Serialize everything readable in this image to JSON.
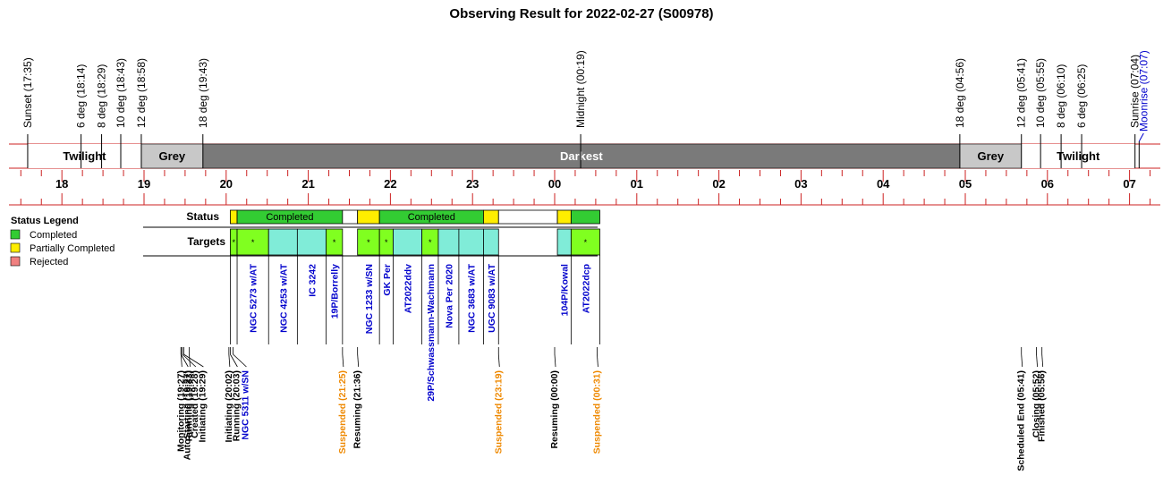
{
  "colors": {
    "grid_red": "#cc2222",
    "twilight": "#ffffff",
    "grey": "#c8c8c8",
    "darkest": "#7a7a7a",
    "completed": "#33cc33",
    "partial": "#ffee00",
    "rejected": "#f08080",
    "target_green": "#80ff20",
    "target_cyan": "#80ecd8",
    "label_blue": "#0000cc",
    "suspended_orange": "#ee8800",
    "event_black": "#000000"
  },
  "chart_data": {
    "type": "timeline",
    "title": "Observing Result for 2022-02-27 (S00978)",
    "x_axis": {
      "unit": "hour",
      "range": [
        "17:08",
        "07:22"
      ],
      "tick_labels": [
        "18",
        "19",
        "20",
        "21",
        "22",
        "23",
        "00",
        "01",
        "02",
        "03",
        "04",
        "05",
        "06",
        "07"
      ]
    },
    "sky_markers": [
      {
        "label": "Sunset (17:35)",
        "time": "17:35",
        "color": "black"
      },
      {
        "label": "6 deg (18:14)",
        "time": "18:14",
        "color": "black"
      },
      {
        "label": "8 deg (18:29)",
        "time": "18:29",
        "color": "black"
      },
      {
        "label": "10 deg (18:43)",
        "time": "18:43",
        "color": "black"
      },
      {
        "label": "12 deg (18:58)",
        "time": "18:58",
        "color": "black"
      },
      {
        "label": "18 deg (19:43)",
        "time": "19:43",
        "color": "black"
      },
      {
        "label": "Midnight (00:19)",
        "time": "00:19",
        "color": "black"
      },
      {
        "label": "18 deg (04:56)",
        "time": "04:56",
        "color": "black"
      },
      {
        "label": "12 deg (05:41)",
        "time": "05:41",
        "color": "black"
      },
      {
        "label": "10 deg (05:55)",
        "time": "05:55",
        "color": "black"
      },
      {
        "label": "8 deg (06:10)",
        "time": "06:10",
        "color": "black"
      },
      {
        "label": "6 deg (06:25)",
        "time": "06:25",
        "color": "black"
      },
      {
        "label": "Sunrise (07:04)",
        "time": "07:04",
        "color": "black"
      },
      {
        "label": "Moonrise (07:07)",
        "time": "07:07",
        "color": "blue"
      }
    ],
    "sky_bands": [
      {
        "label": "Twilight",
        "start": "17:35",
        "end": "18:58",
        "kind": "twilight"
      },
      {
        "label": "Grey",
        "start": "18:58",
        "end": "19:43",
        "kind": "grey"
      },
      {
        "label": "Darkest",
        "start": "19:43",
        "end": "04:56",
        "kind": "darkest"
      },
      {
        "label": "Grey",
        "start": "04:56",
        "end": "05:41",
        "kind": "grey"
      },
      {
        "label": "Twilight",
        "start": "05:41",
        "end": "07:04",
        "kind": "twilight"
      }
    ],
    "row_labels": {
      "status": "Status",
      "targets": "Targets"
    },
    "status_segments": [
      {
        "start": "20:03",
        "end": "20:08",
        "status": "partial",
        "label": ""
      },
      {
        "start": "20:08",
        "end": "21:25",
        "status": "completed",
        "label": "Completed"
      },
      {
        "start": "21:25",
        "end": "21:36",
        "status": "none",
        "label": ""
      },
      {
        "start": "21:36",
        "end": "21:52",
        "status": "partial",
        "label": ""
      },
      {
        "start": "21:52",
        "end": "23:08",
        "status": "completed",
        "label": "Completed"
      },
      {
        "start": "23:08",
        "end": "23:19",
        "status": "partial",
        "label": ""
      },
      {
        "start": "23:19",
        "end": "00:02",
        "status": "none",
        "label": ""
      },
      {
        "start": "00:02",
        "end": "00:12",
        "status": "partial",
        "label": ""
      },
      {
        "start": "00:12",
        "end": "00:33",
        "status": "completed",
        "label": ""
      }
    ],
    "targets": [
      {
        "name": "",
        "start": "20:03",
        "end": "20:08",
        "fill": "green",
        "star": true
      },
      {
        "name": "NGC 5273 w/AT",
        "start": "20:08",
        "end": "20:31",
        "fill": "green",
        "star": true
      },
      {
        "name": "NGC 4253 w/AT",
        "start": "20:31",
        "end": "20:52",
        "fill": "cyan",
        "star": false
      },
      {
        "name": "IC 3242",
        "start": "20:52",
        "end": "21:13",
        "fill": "cyan",
        "star": false
      },
      {
        "name": "19P/Borrelly",
        "start": "21:13",
        "end": "21:25",
        "fill": "green",
        "star": true
      },
      {
        "name": "NGC 1233 w/SN",
        "start": "21:36",
        "end": "21:52",
        "fill": "green",
        "star": true
      },
      {
        "name": "GK Per",
        "start": "21:52",
        "end": "22:02",
        "fill": "green",
        "star": true
      },
      {
        "name": "AT2022ddv",
        "start": "22:02",
        "end": "22:23",
        "fill": "cyan",
        "star": false
      },
      {
        "name": "29P/Schwassmann-Wachmann",
        "start": "22:23",
        "end": "22:35",
        "fill": "green",
        "star": true
      },
      {
        "name": "Nova Per 2020",
        "start": "22:35",
        "end": "22:50",
        "fill": "cyan",
        "star": false
      },
      {
        "name": "NGC 3683 w/AT",
        "start": "22:50",
        "end": "23:08",
        "fill": "cyan",
        "star": false
      },
      {
        "name": "UGC 9083 w/AT",
        "start": "23:08",
        "end": "23:19",
        "fill": "cyan",
        "star": false
      },
      {
        "name": "104P/Kowal",
        "start": "00:02",
        "end": "00:12",
        "fill": "cyan",
        "star": false
      },
      {
        "name": "AT2022dcp",
        "start": "00:12",
        "end": "00:33",
        "fill": "green",
        "star": true
      }
    ],
    "events": [
      {
        "label": "Monitoring (19:27)",
        "time": "19:27",
        "color": "black"
      },
      {
        "label": "AutoStarting (19:27)",
        "time": "19:27",
        "color": "black"
      },
      {
        "label": "Created (19:28)",
        "time": "19:28",
        "color": "black"
      },
      {
        "label": "Initiating (19:29)",
        "time": "19:29",
        "color": "black"
      },
      {
        "label": "Running (19:33)",
        "time": "19:33",
        "color": "black"
      },
      {
        "label": "Initiating (20:02)",
        "time": "20:02",
        "color": "black"
      },
      {
        "label": "Running (20:03)",
        "time": "20:03",
        "color": "black"
      },
      {
        "label": "NGC 5311 w/SN",
        "time": "20:05",
        "color": "blue"
      },
      {
        "label": "Suspended (21:25)",
        "time": "21:25",
        "color": "orange"
      },
      {
        "label": "Resuming (21:36)",
        "time": "21:36",
        "color": "black"
      },
      {
        "label": "Suspended (23:19)",
        "time": "23:19",
        "color": "orange"
      },
      {
        "label": "Resuming (00:00)",
        "time": "00:00",
        "color": "black"
      },
      {
        "label": "Suspended (00:31)",
        "time": "00:31",
        "color": "orange"
      },
      {
        "label": "Scheduled End (05:41)",
        "time": "05:41",
        "color": "black"
      },
      {
        "label": "Closing (05:52)",
        "time": "05:52",
        "color": "black"
      },
      {
        "label": "Finished (05:56)",
        "time": "05:56",
        "color": "black"
      }
    ],
    "legend": {
      "title": "Status Legend",
      "placement": "left",
      "items": [
        {
          "label": "Completed",
          "status": "completed"
        },
        {
          "label": "Partially Completed",
          "status": "partial"
        },
        {
          "label": "Rejected",
          "status": "rejected"
        }
      ]
    }
  }
}
